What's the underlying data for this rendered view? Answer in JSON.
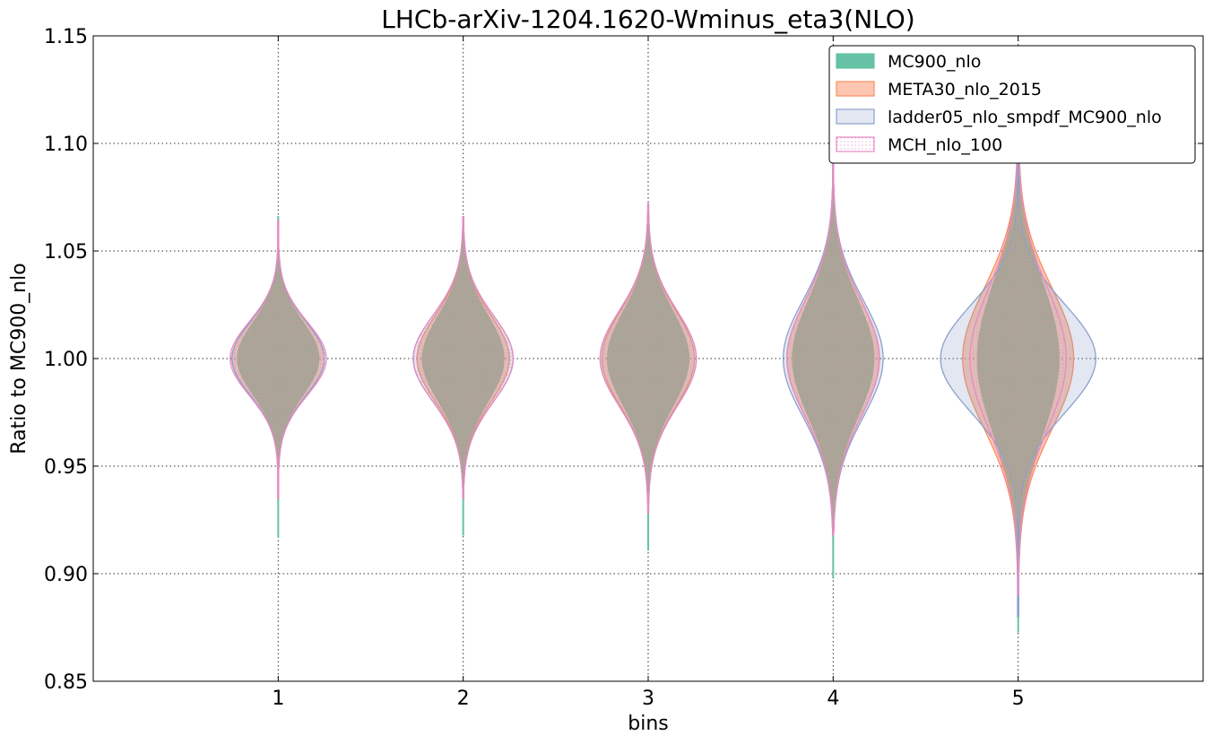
{
  "chart_data": {
    "type": "violin",
    "title": "LHCb-arXiv-1204.1620-Wminus_eta3(NLO)",
    "xlabel": "bins",
    "ylabel": "Ratio to MC900_nlo",
    "categories": [
      "1",
      "2",
      "3",
      "4",
      "5"
    ],
    "x": [
      1,
      2,
      3,
      4,
      5
    ],
    "xlim": [
      0,
      6
    ],
    "ylim": [
      0.85,
      1.15
    ],
    "yticks": [
      0.85,
      0.9,
      0.95,
      1.0,
      1.05,
      1.1,
      1.15
    ],
    "ytick_labels": [
      "0.85",
      "0.90",
      "0.95",
      "1.00",
      "1.05",
      "1.10",
      "1.15"
    ],
    "grid": true,
    "legend_position": "top-right",
    "series": [
      {
        "name": "MC900_nlo",
        "color": "#66c2a5",
        "fill_opacity": 1.0,
        "pattern": "solid",
        "center": [
          1.0,
          1.0,
          1.0,
          1.0,
          1.0
        ],
        "max_half_width": [
          0.22,
          0.22,
          0.22,
          0.22,
          0.22
        ],
        "sigma": [
          0.017,
          0.02,
          0.022,
          0.027,
          0.035
        ],
        "ymin": [
          0.917,
          0.918,
          0.911,
          0.898,
          0.873
        ],
        "ymax": [
          1.066,
          1.066,
          1.072,
          1.097,
          1.13
        ]
      },
      {
        "name": "META30_nlo_2015",
        "color": "#fc8d62",
        "fill_opacity": 0.5,
        "pattern": "solid",
        "center": [
          1.0,
          1.0,
          1.0,
          1.0,
          1.0
        ],
        "max_half_width": [
          0.25,
          0.25,
          0.25,
          0.25,
          0.3
        ],
        "sigma": [
          0.017,
          0.02,
          0.022,
          0.027,
          0.033
        ],
        "ymin": [
          0.935,
          0.935,
          0.928,
          0.918,
          0.89
        ],
        "ymax": [
          1.064,
          1.066,
          1.072,
          1.088,
          1.11
        ]
      },
      {
        "name": "ladder05_nlo_smpdf_MC900_nlo",
        "color": "#8da0cb",
        "fill_opacity": 0.25,
        "pattern": "solid",
        "center": [
          1.0,
          1.0,
          1.0,
          1.0,
          1.0
        ],
        "max_half_width": [
          0.25,
          0.27,
          0.26,
          0.27,
          0.42
        ],
        "sigma": [
          0.017,
          0.02,
          0.022,
          0.027,
          0.025
        ],
        "ymin": [
          0.935,
          0.935,
          0.928,
          0.92,
          0.88
        ],
        "ymax": [
          1.064,
          1.066,
          1.072,
          1.1,
          1.13
        ]
      },
      {
        "name": "MCH_nlo_100",
        "color": "#e78ac3",
        "fill_opacity": 0.15,
        "pattern": "dotted",
        "center": [
          1.0,
          1.0,
          1.0,
          1.0,
          1.0
        ],
        "max_half_width": [
          0.26,
          0.27,
          0.26,
          0.25,
          0.26
        ],
        "sigma": [
          0.017,
          0.02,
          0.022,
          0.027,
          0.033
        ],
        "ymin": [
          0.935,
          0.935,
          0.928,
          0.918,
          0.89
        ],
        "ymax": [
          1.064,
          1.066,
          1.072,
          1.1,
          1.13
        ]
      }
    ]
  }
}
